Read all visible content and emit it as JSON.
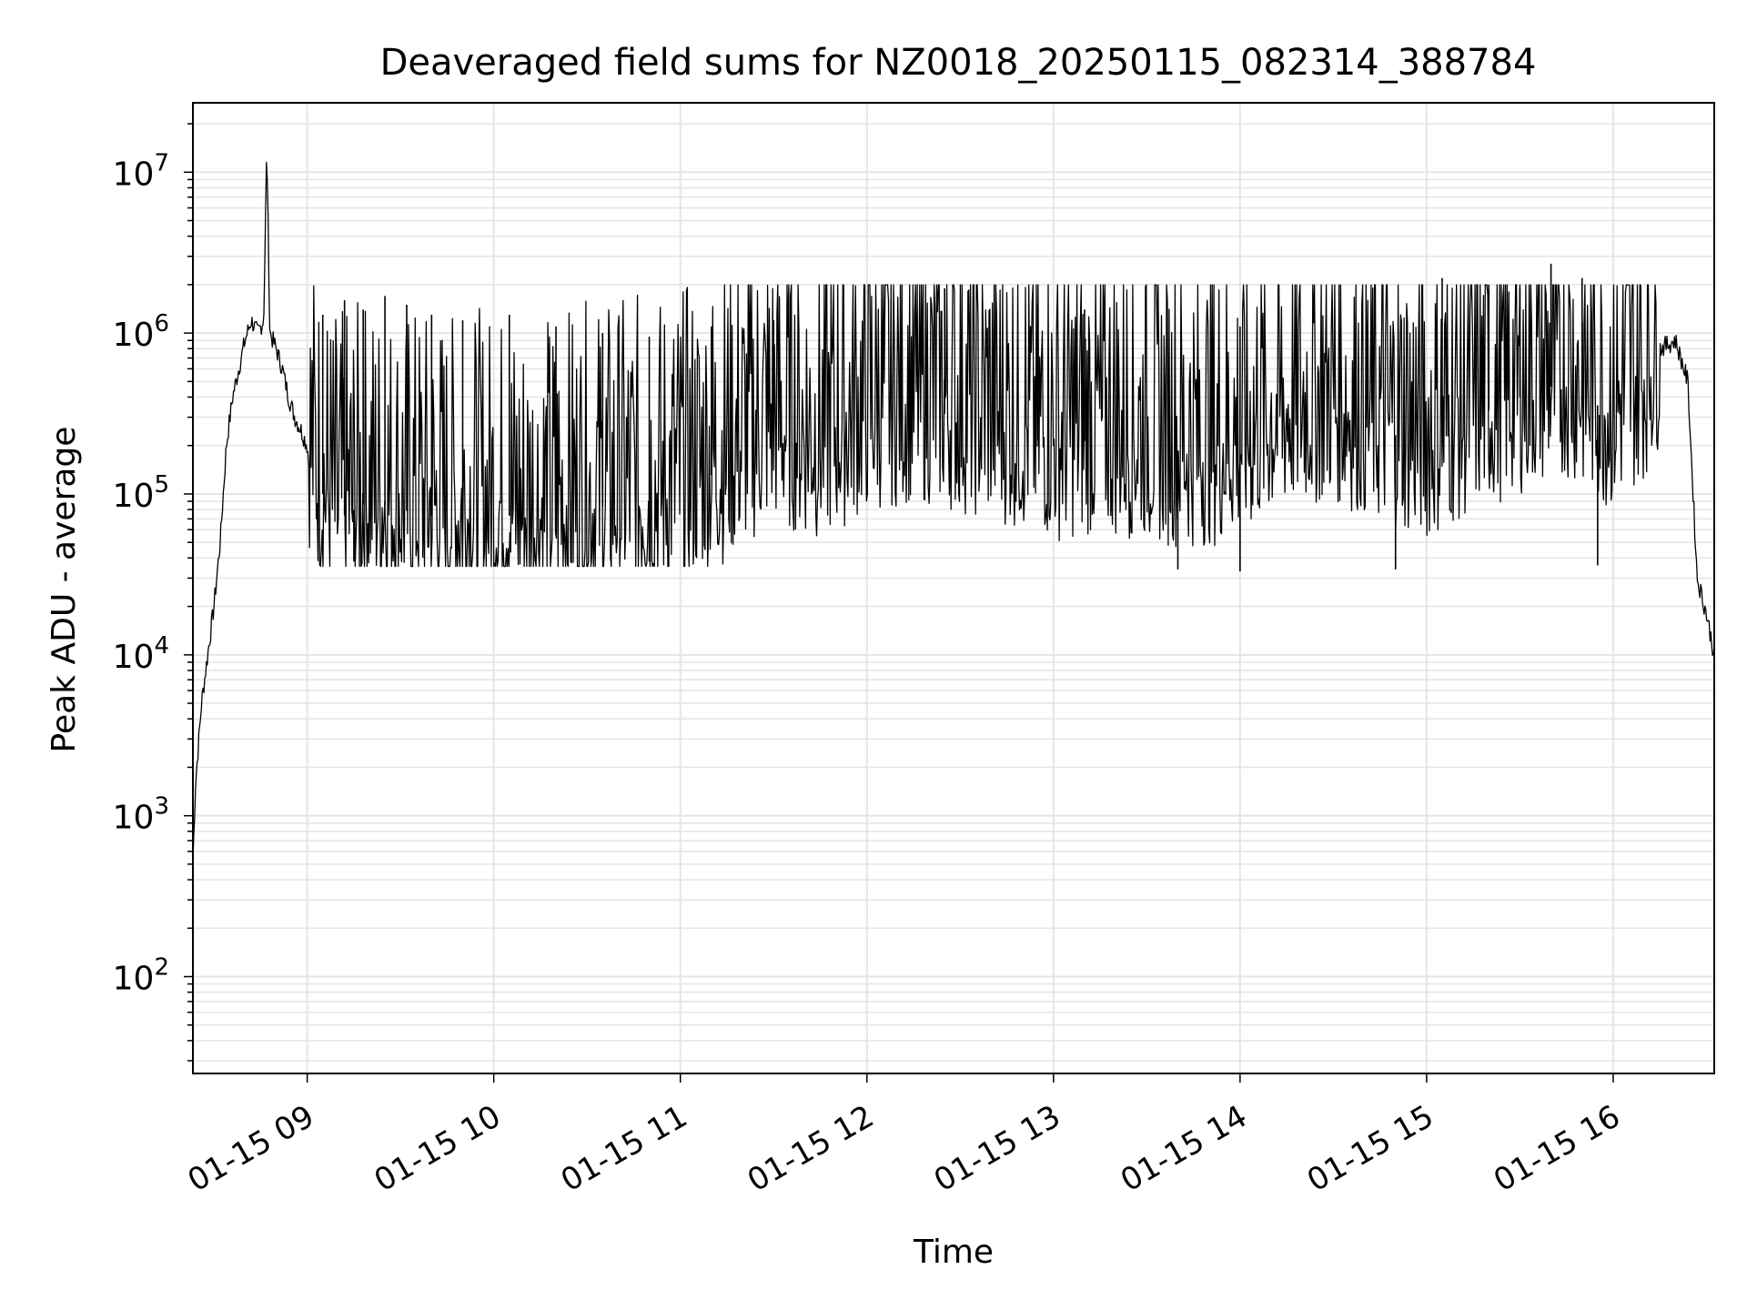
{
  "chart_data": {
    "type": "line",
    "title": "Deaveraged field sums for NZ0018_20250115_082314_388784",
    "xlabel": "Time",
    "ylabel": "Peak ADU - average",
    "yscale": "log",
    "ylim": [
      25,
      27000000
    ],
    "xlim": [
      "2025-01-15 08:23:14",
      "2025-01-15 16:32:30"
    ],
    "grid": true,
    "legend": "none",
    "line_color": "#000000",
    "grid_color": "#e5e5e5",
    "x_ticks": [
      {
        "value": "2025-01-15 09:00",
        "label": "01-15 09"
      },
      {
        "value": "2025-01-15 10:00",
        "label": "01-15 10"
      },
      {
        "value": "2025-01-15 11:00",
        "label": "01-15 11"
      },
      {
        "value": "2025-01-15 12:00",
        "label": "01-15 12"
      },
      {
        "value": "2025-01-15 13:00",
        "label": "01-15 13"
      },
      {
        "value": "2025-01-15 14:00",
        "label": "01-15 14"
      },
      {
        "value": "2025-01-15 15:00",
        "label": "01-15 15"
      },
      {
        "value": "2025-01-15 16:00",
        "label": "01-15 16"
      }
    ],
    "y_ticks": [
      {
        "value": 100,
        "base": "10",
        "exp": "2"
      },
      {
        "value": 1000,
        "base": "10",
        "exp": "3"
      },
      {
        "value": 10000,
        "base": "10",
        "exp": "4"
      },
      {
        "value": 100000,
        "base": "10",
        "exp": "5"
      },
      {
        "value": 1000000,
        "base": "10",
        "exp": "6"
      },
      {
        "value": 10000000,
        "base": "10",
        "exp": "7"
      }
    ],
    "series": [
      {
        "x": [
          "2025-01-15 08:23:14",
          "2025-01-15 08:24",
          "2025-01-15 08:26",
          "2025-01-15 08:28",
          "2025-01-15 08:30",
          "2025-01-15 08:32",
          "2025-01-15 08:34",
          "2025-01-15 08:36",
          "2025-01-15 08:38",
          "2025-01-15 08:40",
          "2025-01-15 08:42",
          "2025-01-15 08:44",
          "2025-01-15 08:46",
          "2025-01-15 08:47",
          "2025-01-15 08:48",
          "2025-01-15 08:50",
          "2025-01-15 08:52",
          "2025-01-15 08:54",
          "2025-01-15 08:56",
          "2025-01-15 08:58",
          "2025-01-15 09:00",
          "2025-01-15 09:05",
          "2025-01-15 09:10",
          "2025-01-15 09:20",
          "2025-01-15 09:30",
          "2025-01-15 09:45",
          "2025-01-15 10:00",
          "2025-01-15 10:15",
          "2025-01-15 10:30",
          "2025-01-15 10:45",
          "2025-01-15 11:00",
          "2025-01-15 11:15",
          "2025-01-15 11:30",
          "2025-01-15 11:45",
          "2025-01-15 12:00",
          "2025-01-15 12:15",
          "2025-01-15 12:30",
          "2025-01-15 12:45",
          "2025-01-15 13:00",
          "2025-01-15 13:15",
          "2025-01-15 13:30",
          "2025-01-15 13:45",
          "2025-01-15 14:00",
          "2025-01-15 14:15",
          "2025-01-15 14:30",
          "2025-01-15 14:45",
          "2025-01-15 15:00",
          "2025-01-15 15:15",
          "2025-01-15 15:30",
          "2025-01-15 15:45",
          "2025-01-15 16:00",
          "2025-01-15 16:10",
          "2025-01-15 16:15",
          "2025-01-15 16:20",
          "2025-01-15 16:24",
          "2025-01-15 16:27",
          "2025-01-15 16:30",
          "2025-01-15 16:32:30"
        ],
        "y": [
          500,
          1500,
          5000,
          10000,
          20000,
          50000,
          200000,
          400000,
          600000,
          900000,
          1200000,
          1000000,
          1200000,
          14500000,
          1000000,
          800000,
          600000,
          400000,
          300000,
          250000,
          200000,
          100000,
          70000,
          90000,
          80000,
          70000,
          75000,
          70000,
          80000,
          90000,
          100000,
          150000,
          250000,
          200000,
          300000,
          350000,
          300000,
          250000,
          200000,
          220000,
          200000,
          180000,
          200000,
          300000,
          350000,
          250000,
          200000,
          300000,
          400000,
          500000,
          300000,
          500000,
          800000,
          900000,
          500000,
          30000,
          18000,
          10000
        ]
      }
    ],
    "spikes": [
      {
        "x": "2025-01-15 09:05",
        "y": 1300000
      },
      {
        "x": "2025-01-15 09:12",
        "y": 1600000
      },
      {
        "x": "2025-01-15 09:18",
        "y": 1400000
      },
      {
        "x": "2025-01-15 09:25",
        "y": 1700000
      },
      {
        "x": "2025-01-15 09:32",
        "y": 1500000
      },
      {
        "x": "2025-01-15 09:40",
        "y": 1300000
      },
      {
        "x": "2025-01-15 09:50",
        "y": 1200000
      },
      {
        "x": "2025-01-15 10:05",
        "y": 1300000
      },
      {
        "x": "2025-01-15 10:20",
        "y": 1100000
      },
      {
        "x": "2025-01-15 10:35",
        "y": 1000000
      },
      {
        "x": "2025-01-15 10:50",
        "y": 950000
      },
      {
        "x": "2025-01-15 11:10",
        "y": 1100000
      },
      {
        "x": "2025-01-15 11:30",
        "y": 1200000
      },
      {
        "x": "2025-01-15 12:25",
        "y": 1900000
      },
      {
        "x": "2025-01-15 12:55",
        "y": 1500000
      },
      {
        "x": "2025-01-15 13:10",
        "y": 1400000
      },
      {
        "x": "2025-01-15 14:00",
        "y": 1100000
      },
      {
        "x": "2025-01-15 15:05",
        "y": 2200000
      },
      {
        "x": "2025-01-15 15:20",
        "y": 2000000
      },
      {
        "x": "2025-01-15 15:30",
        "y": 1900000
      },
      {
        "x": "2025-01-15 15:40",
        "y": 2700000
      },
      {
        "x": "2025-01-15 15:50",
        "y": 2200000
      },
      {
        "x": "2025-01-15 15:55",
        "y": 36000
      },
      {
        "x": "2025-01-15 09:15",
        "y": 38000
      },
      {
        "x": "2025-01-15 10:50",
        "y": 38000
      },
      {
        "x": "2025-01-15 13:40",
        "y": 34000
      },
      {
        "x": "2025-01-15 14:00",
        "y": 33000
      },
      {
        "x": "2025-01-15 14:50",
        "y": 34000
      }
    ]
  }
}
